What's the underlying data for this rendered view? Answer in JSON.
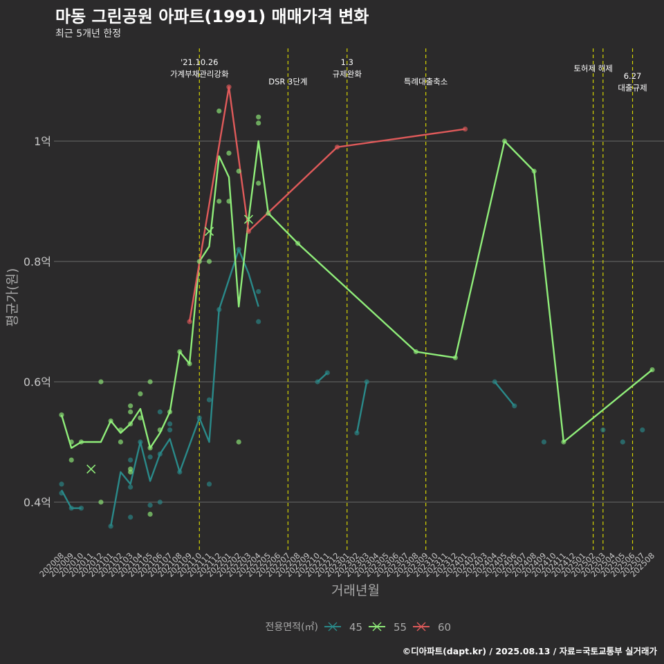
{
  "title": "마동 그린공원 아파트(1991) 매매가격 변화",
  "subtitle": "최근 5개년 한정",
  "caption": "©디아파트(dapt.kr) / 2025.08.13 / 자료=국토교통부 실거래가",
  "chart_data": {
    "type": "line",
    "xlabel": "거래년월",
    "ylabel": "평균가(원)",
    "x_categories": [
      "202008",
      "202009",
      "202010",
      "202011",
      "202012",
      "202101",
      "202102",
      "202103",
      "202104",
      "202105",
      "202106",
      "202107",
      "202108",
      "202109",
      "202110",
      "202111",
      "202112",
      "202201",
      "202202",
      "202203",
      "202204",
      "202205",
      "202206",
      "202207",
      "202208",
      "202209",
      "202210",
      "202211",
      "202212",
      "202301",
      "202302",
      "202303",
      "202304",
      "202305",
      "202306",
      "202307",
      "202308",
      "202309",
      "202310",
      "202311",
      "202312",
      "202401",
      "202402",
      "202403",
      "202404",
      "202405",
      "202406",
      "202407",
      "202408",
      "202409",
      "202410",
      "202411",
      "202412",
      "202501",
      "202502",
      "202503",
      "202504",
      "202505",
      "202506",
      "202507",
      "202508"
    ],
    "y_ticks": [
      {
        "value": 40000000,
        "label": "0.4억"
      },
      {
        "value": 60000000,
        "label": "0.6억"
      },
      {
        "value": 80000000,
        "label": "0.8억"
      },
      {
        "value": 100000000,
        "label": "1억"
      }
    ],
    "ylim": [
      33000000,
      115000000
    ],
    "grid": "horizontal",
    "legend": {
      "title": "전용면적(㎡)",
      "position": "bottom"
    },
    "series": [
      {
        "name": "45",
        "color": "#2a8a8a",
        "line": [
          [
            "202008",
            42000000
          ],
          [
            "202009",
            39000000
          ],
          [
            "202010",
            39000000
          ],
          null,
          [
            "202101",
            36000000
          ],
          [
            "202102",
            45000000
          ],
          [
            "202103",
            43000000
          ],
          [
            "202104",
            50000000
          ],
          [
            "202105",
            43500000
          ],
          [
            "202106",
            48000000
          ],
          [
            "202107",
            50500000
          ],
          [
            "202108",
            45000000
          ],
          [
            "202109",
            49500000
          ],
          [
            "202110",
            54000000
          ],
          [
            "202111",
            50000000
          ],
          [
            "202112",
            72000000
          ],
          [
            "202201",
            77000000
          ],
          [
            "202202",
            82000000
          ],
          [
            "202203",
            78000000
          ],
          [
            "202204",
            72500000
          ],
          null,
          [
            "202210",
            60000000
          ],
          [
            "202211",
            61500000
          ],
          null,
          [
            "202302",
            51500000
          ],
          [
            "202303",
            60000000
          ],
          null,
          [
            "202404",
            60000000
          ],
          [
            "202405",
            58000000
          ],
          [
            "202406",
            56000000
          ]
        ]
      },
      {
        "name": "55",
        "color": "#90ee7a",
        "line": [
          [
            "202008",
            54500000
          ],
          [
            "202009",
            49000000
          ],
          [
            "202010",
            50000000
          ],
          [
            "202011",
            50000000
          ],
          [
            "202012",
            50000000
          ],
          [
            "202101",
            53500000
          ],
          [
            "202102",
            51500000
          ],
          [
            "202103",
            53000000
          ],
          [
            "202104",
            55500000
          ],
          [
            "202105",
            49000000
          ],
          [
            "202106",
            51500000
          ],
          [
            "202107",
            55000000
          ],
          [
            "202108",
            65000000
          ],
          [
            "202109",
            63000000
          ],
          [
            "202110",
            80000000
          ],
          [
            "202111",
            82500000
          ],
          [
            "202112",
            97500000
          ],
          [
            "202201",
            94000000
          ],
          [
            "202202",
            72500000
          ],
          [
            "202203",
            87000000
          ],
          [
            "202204",
            100000000
          ],
          [
            "202205",
            88000000
          ],
          [
            "202208",
            83000000
          ],
          [
            "202308",
            65000000
          ],
          [
            "202312",
            64000000
          ],
          [
            "202405",
            100000000
          ],
          [
            "202408",
            95000000
          ],
          [
            "202411",
            50000000
          ],
          [
            "202508",
            62000000
          ]
        ]
      },
      {
        "name": "60",
        "color": "#e05a5a",
        "line": [
          [
            "202109",
            70000000
          ],
          [
            "202201",
            109000000
          ],
          [
            "202203",
            85000000
          ],
          [
            "202212",
            99000000
          ],
          [
            "202401",
            102000000
          ]
        ]
      }
    ],
    "scatter": [
      {
        "series": "45",
        "x": "202008",
        "y": 43000000
      },
      {
        "series": "45",
        "x": "202008",
        "y": 41500000
      },
      {
        "series": "45",
        "x": "202009",
        "y": 39000000
      },
      {
        "series": "45",
        "x": "202010",
        "y": 39000000
      },
      {
        "series": "45",
        "x": "202101",
        "y": 36000000
      },
      {
        "series": "45",
        "x": "202103",
        "y": 47000000
      },
      {
        "series": "45",
        "x": "202103",
        "y": 42500000
      },
      {
        "series": "45",
        "x": "202103",
        "y": 37500000
      },
      {
        "series": "45",
        "x": "202104",
        "y": 50000000
      },
      {
        "series": "45",
        "x": "202105",
        "y": 47500000
      },
      {
        "series": "45",
        "x": "202105",
        "y": 39500000
      },
      {
        "series": "45",
        "x": "202106",
        "y": 48000000
      },
      {
        "series": "45",
        "x": "202106",
        "y": 40000000
      },
      {
        "series": "45",
        "x": "202106",
        "y": 55000000
      },
      {
        "series": "45",
        "x": "202107",
        "y": 53000000
      },
      {
        "series": "45",
        "x": "202107",
        "y": 52000000
      },
      {
        "series": "45",
        "x": "202108",
        "y": 45000000
      },
      {
        "series": "45",
        "x": "202110",
        "y": 54000000
      },
      {
        "series": "45",
        "x": "202111",
        "y": 57000000
      },
      {
        "series": "45",
        "x": "202111",
        "y": 43000000
      },
      {
        "series": "45",
        "x": "202112",
        "y": 72000000
      },
      {
        "series": "45",
        "x": "202202",
        "y": 82000000
      },
      {
        "series": "45",
        "x": "202204",
        "y": 75000000
      },
      {
        "series": "45",
        "x": "202204",
        "y": 70000000
      },
      {
        "series": "45",
        "x": "202210",
        "y": 60000000
      },
      {
        "series": "45",
        "x": "202211",
        "y": 61500000
      },
      {
        "series": "45",
        "x": "202302",
        "y": 51500000
      },
      {
        "series": "45",
        "x": "202303",
        "y": 60000000
      },
      {
        "series": "45",
        "x": "202404",
        "y": 60000000
      },
      {
        "series": "45",
        "x": "202406",
        "y": 56000000
      },
      {
        "series": "45",
        "x": "202409",
        "y": 50000000
      },
      {
        "series": "45",
        "x": "202503",
        "y": 52000000
      },
      {
        "series": "45",
        "x": "202505",
        "y": 50000000
      },
      {
        "series": "45",
        "x": "202507",
        "y": 52000000
      },
      {
        "series": "55",
        "x": "202008",
        "y": 54500000
      },
      {
        "series": "55",
        "x": "202009",
        "y": 50000000
      },
      {
        "series": "55",
        "x": "202009",
        "y": 47000000
      },
      {
        "series": "55",
        "x": "202010",
        "y": 50000000
      },
      {
        "series": "55",
        "x": "202012",
        "y": 60000000
      },
      {
        "series": "55",
        "x": "202012",
        "y": 40000000
      },
      {
        "series": "55",
        "x": "202101",
        "y": 53500000
      },
      {
        "series": "55",
        "x": "202102",
        "y": 52000000
      },
      {
        "series": "55",
        "x": "202102",
        "y": 50000000
      },
      {
        "series": "55",
        "x": "202103",
        "y": 56000000
      },
      {
        "series": "55",
        "x": "202103",
        "y": 55000000
      },
      {
        "series": "55",
        "x": "202103",
        "y": 53000000
      },
      {
        "series": "55",
        "x": "202103",
        "y": 45500000
      },
      {
        "series": "55",
        "x": "202103",
        "y": 45000000
      },
      {
        "series": "55",
        "x": "202104",
        "y": 58000000
      },
      {
        "series": "55",
        "x": "202104",
        "y": 54000000
      },
      {
        "series": "55",
        "x": "202105",
        "y": 60000000
      },
      {
        "series": "55",
        "x": "202105",
        "y": 49000000
      },
      {
        "series": "55",
        "x": "202105",
        "y": 38000000
      },
      {
        "series": "55",
        "x": "202106",
        "y": 52000000
      },
      {
        "series": "55",
        "x": "202107",
        "y": 55000000
      },
      {
        "series": "55",
        "x": "202108",
        "y": 65000000
      },
      {
        "series": "55",
        "x": "202109",
        "y": 63000000
      },
      {
        "series": "55",
        "x": "202110",
        "y": 80000000
      },
      {
        "series": "55",
        "x": "202111",
        "y": 80000000
      },
      {
        "series": "55",
        "x": "202112",
        "y": 105000000
      },
      {
        "series": "55",
        "x": "202112",
        "y": 90000000
      },
      {
        "series": "55",
        "x": "202201",
        "y": 98000000
      },
      {
        "series": "55",
        "x": "202201",
        "y": 90000000
      },
      {
        "series": "55",
        "x": "202202",
        "y": 95000000
      },
      {
        "series": "55",
        "x": "202202",
        "y": 50000000
      },
      {
        "series": "55",
        "x": "202204",
        "y": 104000000
      },
      {
        "series": "55",
        "x": "202204",
        "y": 103000000
      },
      {
        "series": "55",
        "x": "202204",
        "y": 93000000
      },
      {
        "series": "55",
        "x": "202205",
        "y": 88000000
      },
      {
        "series": "55",
        "x": "202208",
        "y": 83000000
      },
      {
        "series": "55",
        "x": "202308",
        "y": 65000000
      },
      {
        "series": "55",
        "x": "202312",
        "y": 64000000
      },
      {
        "series": "55",
        "x": "202405",
        "y": 100000000
      },
      {
        "series": "55",
        "x": "202408",
        "y": 95000000
      },
      {
        "series": "55",
        "x": "202411",
        "y": 50000000
      },
      {
        "series": "55",
        "x": "202508",
        "y": 62000000
      },
      {
        "series": "60",
        "x": "202109",
        "y": 70000000
      },
      {
        "series": "60",
        "x": "202201",
        "y": 109000000
      },
      {
        "series": "60",
        "x": "202203",
        "y": 85000000
      },
      {
        "series": "60",
        "x": "202212",
        "y": 99000000
      },
      {
        "series": "60",
        "x": "202401",
        "y": 102000000
      }
    ],
    "cross_markers": [
      {
        "series": "55",
        "x": "202011",
        "y": 45500000
      },
      {
        "series": "55",
        "x": "202111",
        "y": 85000000
      },
      {
        "series": "55",
        "x": "202203",
        "y": 87000000
      }
    ],
    "events": [
      {
        "x": "202110",
        "label": "'21.10.26\n가계부채관리강화"
      },
      {
        "x": "202207",
        "label": "DSR 3단계"
      },
      {
        "x": "202301",
        "label": "1.3\n규제완화"
      },
      {
        "x": "202309",
        "label": "특례대출축소"
      },
      {
        "x": "202502",
        "label": "토허제 해제"
      },
      {
        "x": "202503",
        "label": ""
      },
      {
        "x": "202506",
        "label": "6.27\n대출규제"
      }
    ]
  }
}
